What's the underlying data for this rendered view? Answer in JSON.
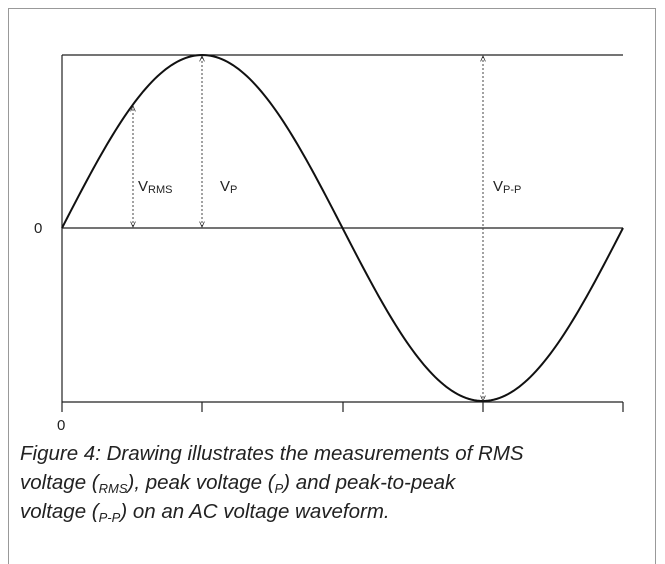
{
  "labels": [
    {
      "main": "V",
      "sub": "RMS"
    },
    {
      "main": "V",
      "sub": "P"
    },
    {
      "main": "V",
      "sub": "P-P"
    }
  ],
  "y_zero_label": "0",
  "x_zero_label": "0",
  "caption": [
    [
      "Figure 4: Drawing illustrates the measurements of RMS"
    ],
    [
      "voltage (",
      "RMS",
      "), peak voltage (",
      "P",
      ") and peak-to-peak"
    ],
    [
      "voltage (",
      "P-P",
      ") on an AC voltage waveform."
    ]
  ]
}
